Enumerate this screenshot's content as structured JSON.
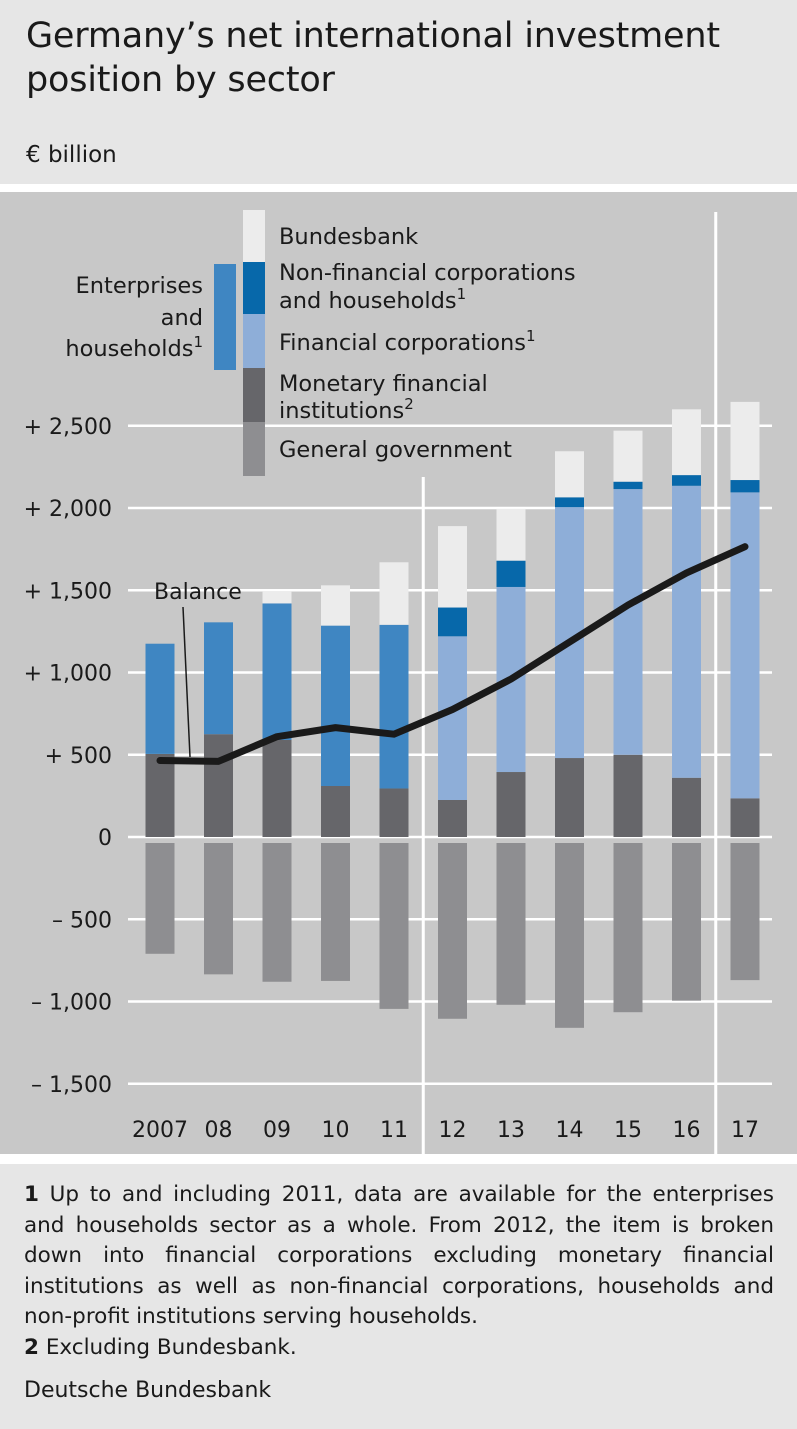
{
  "title": "Germany’s net international investment position by sector",
  "unit": "€ billion",
  "footnotes": [
    {
      "num": "1",
      "text": "Up to and including 2011, data are available for the enterprises and households sector as a whole. From 2012, the item is broken down into financial corporations excluding monetary financial institutions as well as non-financial corporations, households and non-profit institutions serving households."
    },
    {
      "num": "2",
      "text": "Excluding Bundesbank."
    }
  ],
  "source": "Deutsche Bundesbank",
  "chart_data": {
    "type": "bar",
    "stacked": true,
    "title": "Germany’s net international investment position by sector",
    "ylabel": "€ billion",
    "ylim": [
      -1500,
      2800
    ],
    "yticks": [
      {
        "value": 2500,
        "label": "+ 2,500"
      },
      {
        "value": 2000,
        "label": "+ 2,000"
      },
      {
        "value": 1500,
        "label": "+ 1,500"
      },
      {
        "value": 1000,
        "label": "+ 1,000"
      },
      {
        "value": 500,
        "label": "+    500"
      },
      {
        "value": 0,
        "label": "0"
      },
      {
        "value": -500,
        "label": "–    500"
      },
      {
        "value": -1000,
        "label": "– 1,000"
      },
      {
        "value": -1500,
        "label": "– 1,500"
      }
    ],
    "categories": [
      "2007",
      "08",
      "09",
      "10",
      "11",
      "12",
      "13",
      "14",
      "15",
      "16",
      "17"
    ],
    "series": [
      {
        "name": "General government",
        "color": "#8e8e91",
        "values": [
          -710,
          -835,
          -880,
          -875,
          -1045,
          -1105,
          -1020,
          -1160,
          -1065,
          -995,
          -870
        ]
      },
      {
        "name": "Monetary financial institutions²",
        "color": "#66666a",
        "values": [
          505,
          625,
          590,
          310,
          295,
          225,
          395,
          480,
          500,
          360,
          235
        ]
      },
      {
        "name": "Financial corporations¹",
        "color": "#8eaed8",
        "values": [
          null,
          null,
          null,
          null,
          null,
          995,
          1125,
          1525,
          1615,
          1775,
          1860
        ]
      },
      {
        "name": "Enterprises and households¹",
        "color": "#3f86c2",
        "values": [
          670,
          680,
          830,
          975,
          995,
          null,
          null,
          null,
          null,
          null,
          null
        ]
      },
      {
        "name": "Non-financial corporations and households¹",
        "color": "#0768aa",
        "values": [
          null,
          null,
          null,
          null,
          null,
          175,
          160,
          60,
          45,
          65,
          75
        ]
      },
      {
        "name": "Bundesbank",
        "color": "#ececec",
        "values": [
          0,
          0,
          75,
          245,
          380,
          495,
          315,
          280,
          310,
          400,
          475
        ]
      }
    ],
    "balance": {
      "name": "Balance",
      "color": "#1a1a1a",
      "values": [
        465,
        460,
        610,
        665,
        625,
        775,
        960,
        1185,
        1410,
        1605,
        1765
      ]
    },
    "legend": {
      "items": [
        {
          "label": "Bundesbank",
          "color": "#ececec"
        },
        {
          "label": "Non-financial corporations\nand households¹",
          "color": "#0768aa"
        },
        {
          "label": "Financial corporations¹",
          "color": "#8eaed8"
        },
        {
          "label": "Monetary financial\ninstitutions²",
          "color": "#66666a"
        },
        {
          "label": "General government",
          "color": "#8e8e91"
        }
      ],
      "group_label": "Enterprises\nand\nhouseholds¹",
      "group_color": "#3f86c2",
      "placement": "top"
    },
    "annotation": "Balance",
    "vertical_dividers_after": [
      "11",
      "16"
    ],
    "grid": true
  }
}
